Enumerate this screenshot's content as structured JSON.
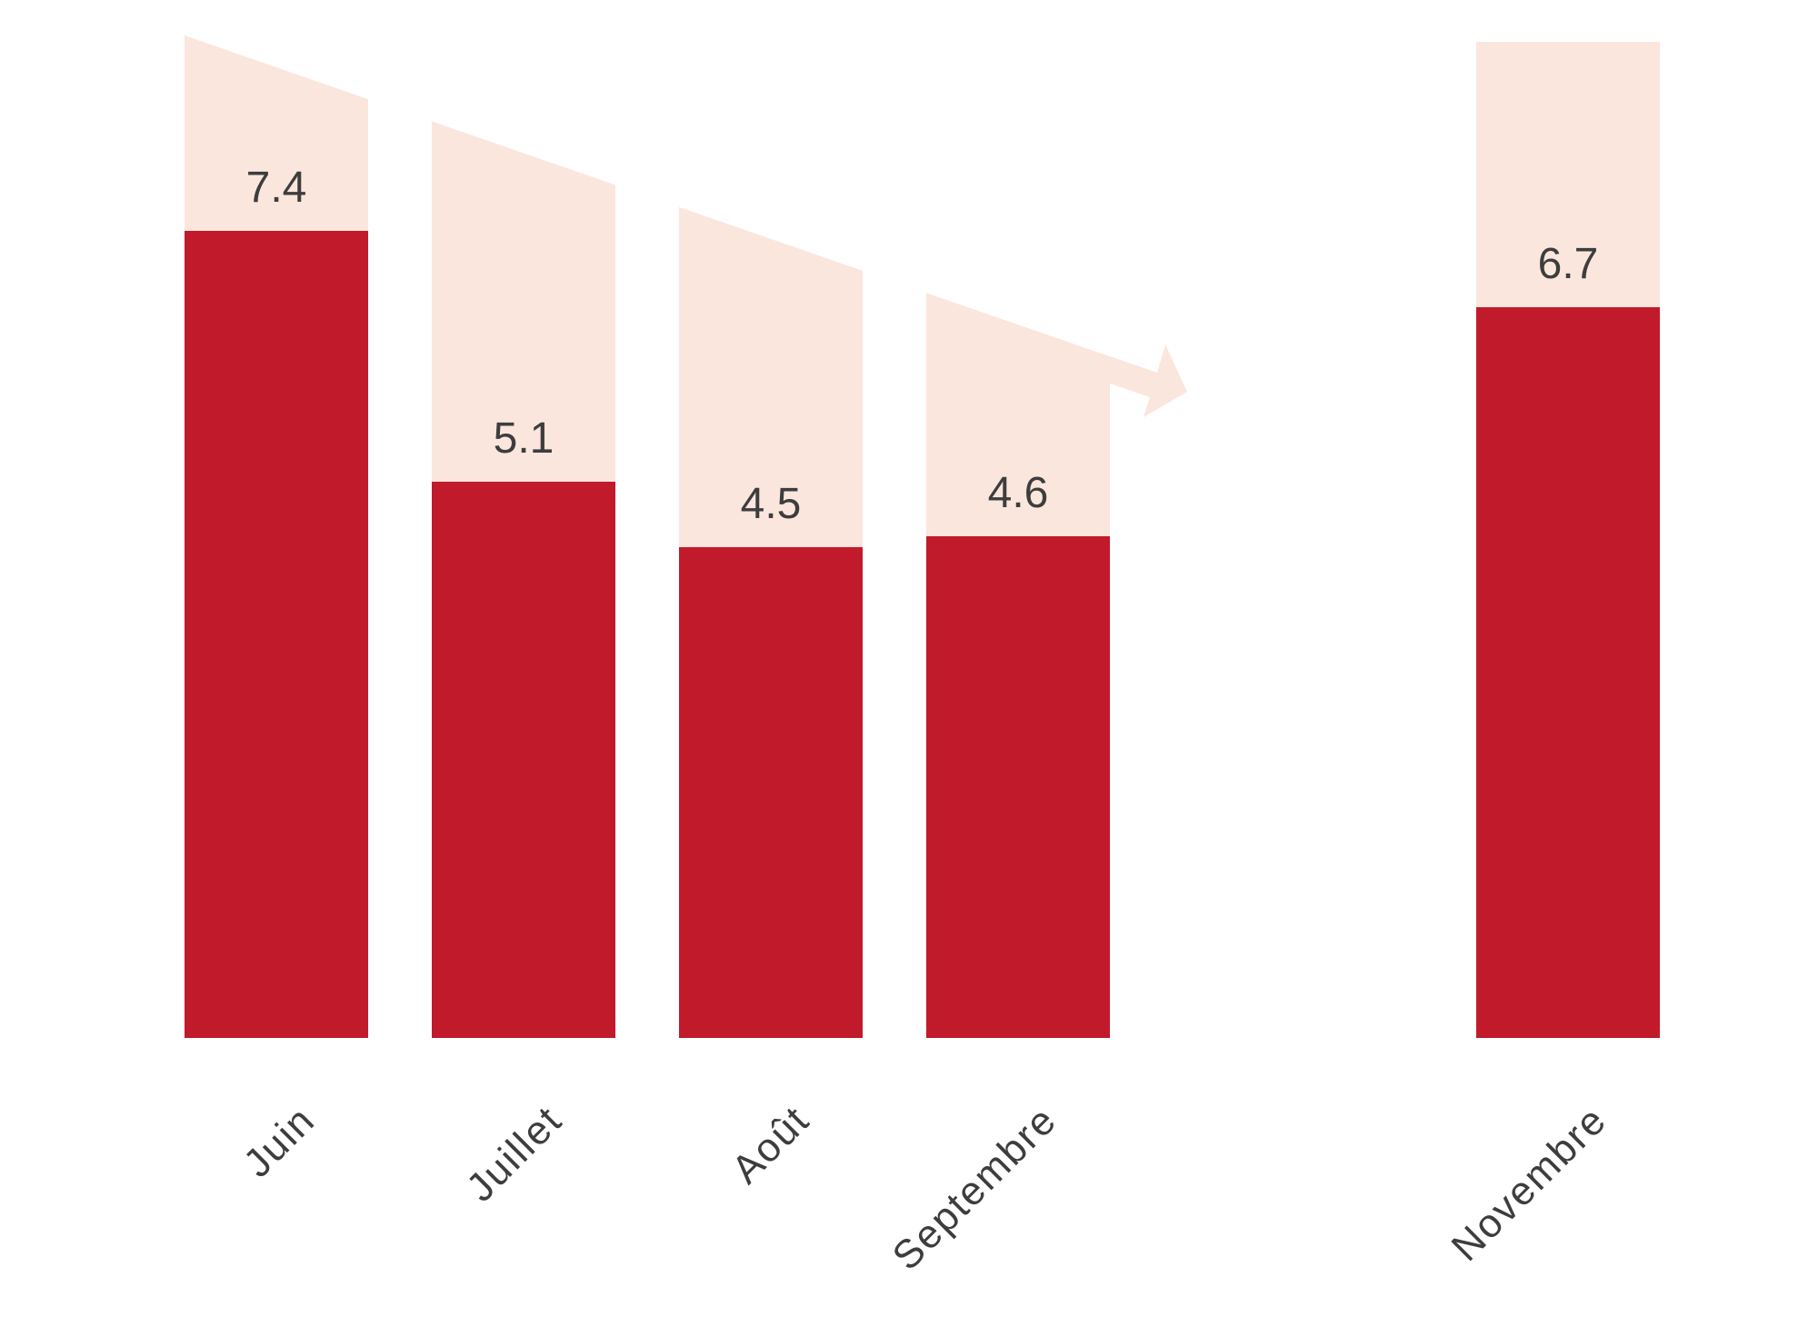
{
  "chart_data": {
    "type": "bar",
    "title": "",
    "categories": [
      "Juin",
      "Juillet",
      "Août",
      "Septembre",
      "Novembre"
    ],
    "values": [
      7.4,
      5.1,
      4.5,
      4.6,
      6.7
    ],
    "value_labels": [
      "7.4",
      "5.1",
      "4.5",
      "4.6",
      "6.7"
    ],
    "xlabel": "",
    "ylabel": "",
    "ylim": [
      0,
      9.2
    ],
    "grid": false,
    "legend": false,
    "annotations": [
      "decorative pale band behind bars slanting down from Juin to Septembre, ending in a down-right trend arrow",
      "Novembre band has a flat top",
      "month labels rotated 45 degrees"
    ],
    "colors": {
      "bar": "#C11A2B",
      "band": "#FBE6DE",
      "text": "#3D3D3D",
      "background": "#FFFFFF"
    }
  }
}
